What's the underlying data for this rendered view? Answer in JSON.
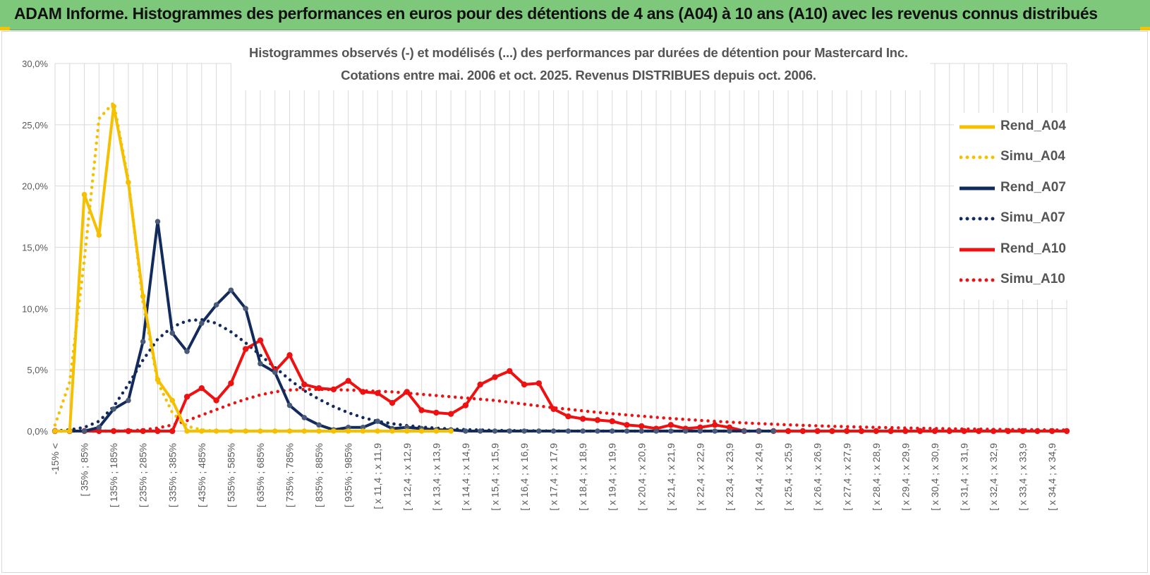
{
  "header": {
    "title": "ADAM Informe. Histogrammes des performances en euros pour des détentions de 4 ans (A04) à 10 ans (A10) avec les revenus connus distribués"
  },
  "colors": {
    "banner_bg": "#7ec87c",
    "accent_corner": "#f5c400",
    "A04": "#f5c000",
    "A07": "#132a5c",
    "A10": "#ee1111",
    "grid": "#d9d9d9",
    "axis_text": "#595959"
  },
  "chart_data": {
    "type": "line",
    "title": [
      "Histogrammes observés (-) et modélisés (...) des performances par durées de détention pour Mastercard Inc.",
      "Cotations entre mai. 2006 et oct. 2025. Revenus DISTRIBUES depuis oct. 2006."
    ],
    "xlabel": "",
    "ylabel": "",
    "ylim": [
      0,
      30
    ],
    "yticks": [
      0,
      5,
      10,
      15,
      20,
      25,
      30
    ],
    "ytick_labels": [
      "0,0%",
      "5,0%",
      "10,0%",
      "15,0%",
      "20,0%",
      "25,0%",
      "30,0%"
    ],
    "grid": true,
    "legend_position": "right",
    "x_tick_labels": [
      "-15% <",
      "[ 35% ; 85%",
      "[ 135% ; 185%",
      "[ 235% ; 285%",
      "[ 335% ; 385%",
      "[ 435% ; 485%",
      "[ 535% ; 585%",
      "[ 635% ; 685%",
      "[ 735% ; 785%",
      "[ 835% ; 885%",
      "[ 935% ; 985%",
      "[ x 11,4 ; x 11,9",
      "[ x 12,4 ; x 12,9",
      "[ x 13,4 ; x 13,9",
      "[ x 14,4 ; x 14,9",
      "[ x 15,4 ; x 15,9",
      "[ x 16,4 ; x 16,9",
      "[ x 17,4 ; x 17,9",
      "[ x 18,4 ; x 18,9",
      "[ x 19,4 ; x 19,9",
      "[ x 20,4 ; x 20,9",
      "[ x 21,4 ; x 21,9",
      "[ x 22,4 ; x 22,9",
      "[ x 23,4 ; x 23,9",
      "[ x 24,4 ; x 24,9",
      "[ x 25,4 ; x 25,9",
      "[ x 26,4 ; x 26,9",
      "[ x 27,4 ; x 27,9",
      "[ x 28,4 ; x 28,9",
      "[ x 29,4 ; x 29,9",
      "[ x 30,4 ; x 30,9",
      "[ x 31,4 ; x 31,9",
      "[ x 32,4 ; x 32,9",
      "[ x 33,4 ; x 33,9",
      "[ x 34,4 ; x 34,9"
    ],
    "n_bins": 70,
    "series": [
      {
        "name": "Rend_A04",
        "style": "solid",
        "color": "#f5c000",
        "values": [
          0,
          0,
          19.3,
          16,
          26.5,
          20.3,
          11,
          4.2,
          2.5,
          0,
          0,
          0,
          0,
          0,
          0,
          0,
          0,
          0,
          0,
          0,
          0,
          0,
          0,
          0,
          0,
          0,
          0,
          0
        ]
      },
      {
        "name": "Simu_A04",
        "style": "dotted",
        "color": "#f5c000",
        "values": [
          0.5,
          4,
          14,
          25.5,
          26.8,
          20.5,
          10.5,
          4,
          1.5,
          0.4,
          0.1,
          0,
          0,
          0,
          0,
          0,
          0,
          0,
          0,
          0,
          0,
          0,
          0,
          0,
          0,
          0,
          0,
          0
        ]
      },
      {
        "name": "Rend_A07",
        "style": "solid",
        "color": "#132a5c",
        "values": [
          0,
          0,
          0,
          0.3,
          1.8,
          2.5,
          7.3,
          17.1,
          8.0,
          6.5,
          8.8,
          10.3,
          11.5,
          10,
          5.5,
          4.8,
          2.1,
          1.1,
          0.5,
          0.1,
          0.3,
          0.3,
          0.8,
          0.2,
          0.3,
          0.2,
          0.1,
          0.1,
          0,
          0,
          0,
          0,
          0,
          0,
          0,
          0,
          0,
          0,
          0,
          0,
          0,
          0,
          0,
          0,
          0,
          0,
          0,
          0,
          0,
          0
        ]
      },
      {
        "name": "Simu_A07",
        "style": "dotted",
        "color": "#132a5c",
        "values": [
          0,
          0.1,
          0.3,
          0.8,
          2.0,
          3.8,
          5.8,
          7.5,
          8.5,
          9.0,
          9.1,
          8.8,
          8.1,
          7.2,
          6.2,
          5.2,
          4.2,
          3.3,
          2.6,
          2.0,
          1.5,
          1.1,
          0.8,
          0.6,
          0.45,
          0.33,
          0.24,
          0.17,
          0.12,
          0.09,
          0.06,
          0.04,
          0.03,
          0.02,
          0.01,
          0,
          0,
          0,
          0,
          0,
          0,
          0,
          0,
          0,
          0,
          0,
          0,
          0,
          0,
          0
        ]
      },
      {
        "name": "Rend_A10",
        "style": "solid",
        "color": "#ee1111",
        "values": [
          0,
          0,
          0,
          0,
          0,
          0,
          0,
          0,
          0,
          2.8,
          3.5,
          2.5,
          3.9,
          6.7,
          7.4,
          4.9,
          6.2,
          3.8,
          3.5,
          3.4,
          4.1,
          3.2,
          3.1,
          2.3,
          3.2,
          1.7,
          1.5,
          1.4,
          2.1,
          3.8,
          4.4,
          4.9,
          3.8,
          3.9,
          1.8,
          1.2,
          1.0,
          0.9,
          0.8,
          0.5,
          0.4,
          0.2,
          0.5,
          0.2,
          0.3,
          0.5,
          0.3,
          0,
          0,
          0,
          0,
          0,
          0,
          0,
          0,
          0,
          0,
          0,
          0,
          0,
          0,
          0,
          0,
          0,
          0,
          0,
          0,
          0,
          0,
          0
        ]
      },
      {
        "name": "Simu_A10",
        "style": "dotted",
        "color": "#ee1111",
        "values": [
          0,
          0,
          0,
          0,
          0,
          0.03,
          0.1,
          0.25,
          0.5,
          0.85,
          1.3,
          1.75,
          2.2,
          2.6,
          2.95,
          3.2,
          3.35,
          3.4,
          3.4,
          3.38,
          3.35,
          3.3,
          3.25,
          3.2,
          3.1,
          3.0,
          2.9,
          2.8,
          2.7,
          2.6,
          2.5,
          2.35,
          2.2,
          2.05,
          1.9,
          1.78,
          1.65,
          1.53,
          1.42,
          1.32,
          1.22,
          1.12,
          1.03,
          0.95,
          0.87,
          0.8,
          0.73,
          0.67,
          0.61,
          0.56,
          0.51,
          0.47,
          0.43,
          0.39,
          0.36,
          0.33,
          0.3,
          0.28,
          0.25,
          0.23,
          0.21,
          0.19,
          0.17,
          0.16,
          0.14,
          0.13,
          0.12,
          0.11,
          0.1,
          0.09
        ]
      }
    ]
  }
}
